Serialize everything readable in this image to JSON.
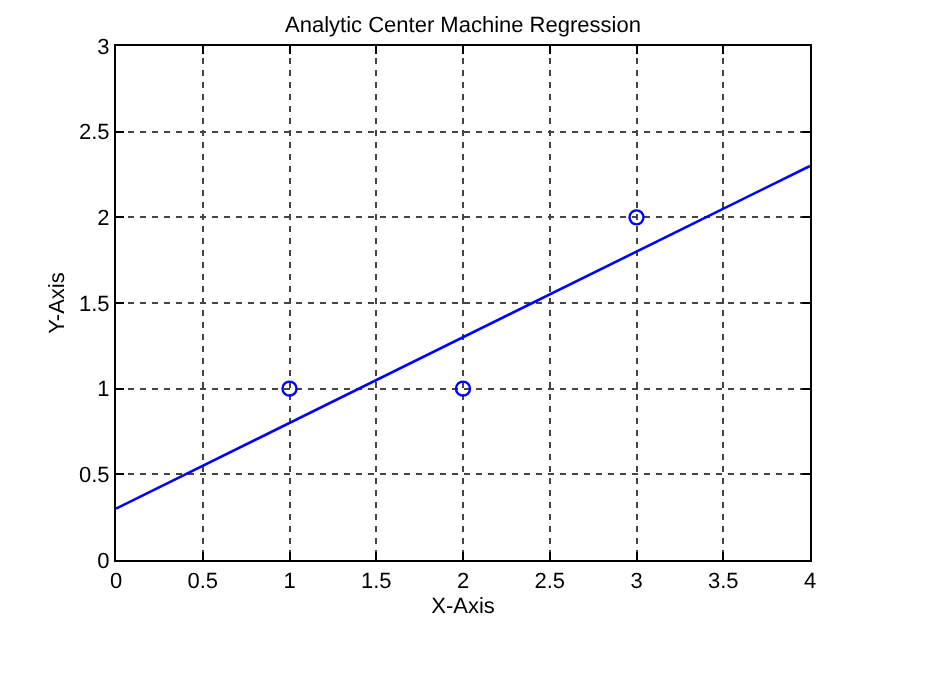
{
  "chart_data": {
    "type": "scatter",
    "title": "Analytic Center Machine Regression",
    "xlabel": "X-Axis",
    "ylabel": "Y-Axis",
    "x": [
      1,
      2,
      3
    ],
    "series": [
      {
        "color": "#0000ff",
        "marker": "circle",
        "values": [
          1,
          1,
          2
        ]
      },
      {
        "type": "line",
        "color": "#0000ff",
        "marker": "none",
        "line_style": "solid",
        "x": [
          0,
          4
        ],
        "values": [
          0.3,
          2.3
        ]
      }
    ],
    "xlim": [
      0,
      4
    ],
    "xticks": [
      0,
      0.5,
      1,
      1.5,
      2,
      2.5,
      3,
      3.5,
      4
    ],
    "ylim": [
      0,
      3
    ],
    "yticks": [
      0,
      0.5,
      1,
      1.5,
      2,
      2.5,
      3
    ],
    "grid": true
  }
}
